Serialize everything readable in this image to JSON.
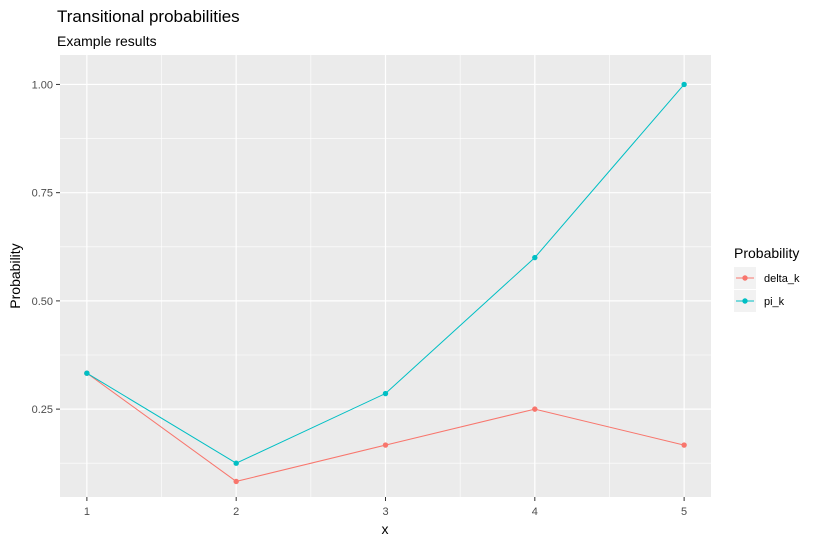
{
  "chart_data": {
    "type": "line",
    "title": "Transitional probabilities",
    "subtitle": "Example results",
    "xlabel": "x",
    "ylabel": "Probability",
    "x": [
      1,
      2,
      3,
      4,
      5
    ],
    "xticks": [
      "1",
      "2",
      "3",
      "4",
      "5"
    ],
    "yticks": [
      "0.25",
      "0.50",
      "0.75",
      "1.00"
    ],
    "ytick_values": [
      0.25,
      0.5,
      0.75,
      1.0
    ],
    "xlim": [
      0.82,
      5.18
    ],
    "ylim": [
      0.047,
      1.068
    ],
    "grid": true,
    "legend": {
      "title": "Probability",
      "placement": "right"
    },
    "series": [
      {
        "name": "delta_k",
        "color": "#F8766D",
        "values": [
          0.333,
          0.083,
          0.167,
          0.25,
          0.167
        ]
      },
      {
        "name": "pi_k",
        "color": "#00BFC4",
        "values": [
          0.333,
          0.125,
          0.286,
          0.6,
          1.0
        ]
      }
    ],
    "panel_background": "#EBEBEB",
    "gridline_color": "#FFFFFF"
  }
}
